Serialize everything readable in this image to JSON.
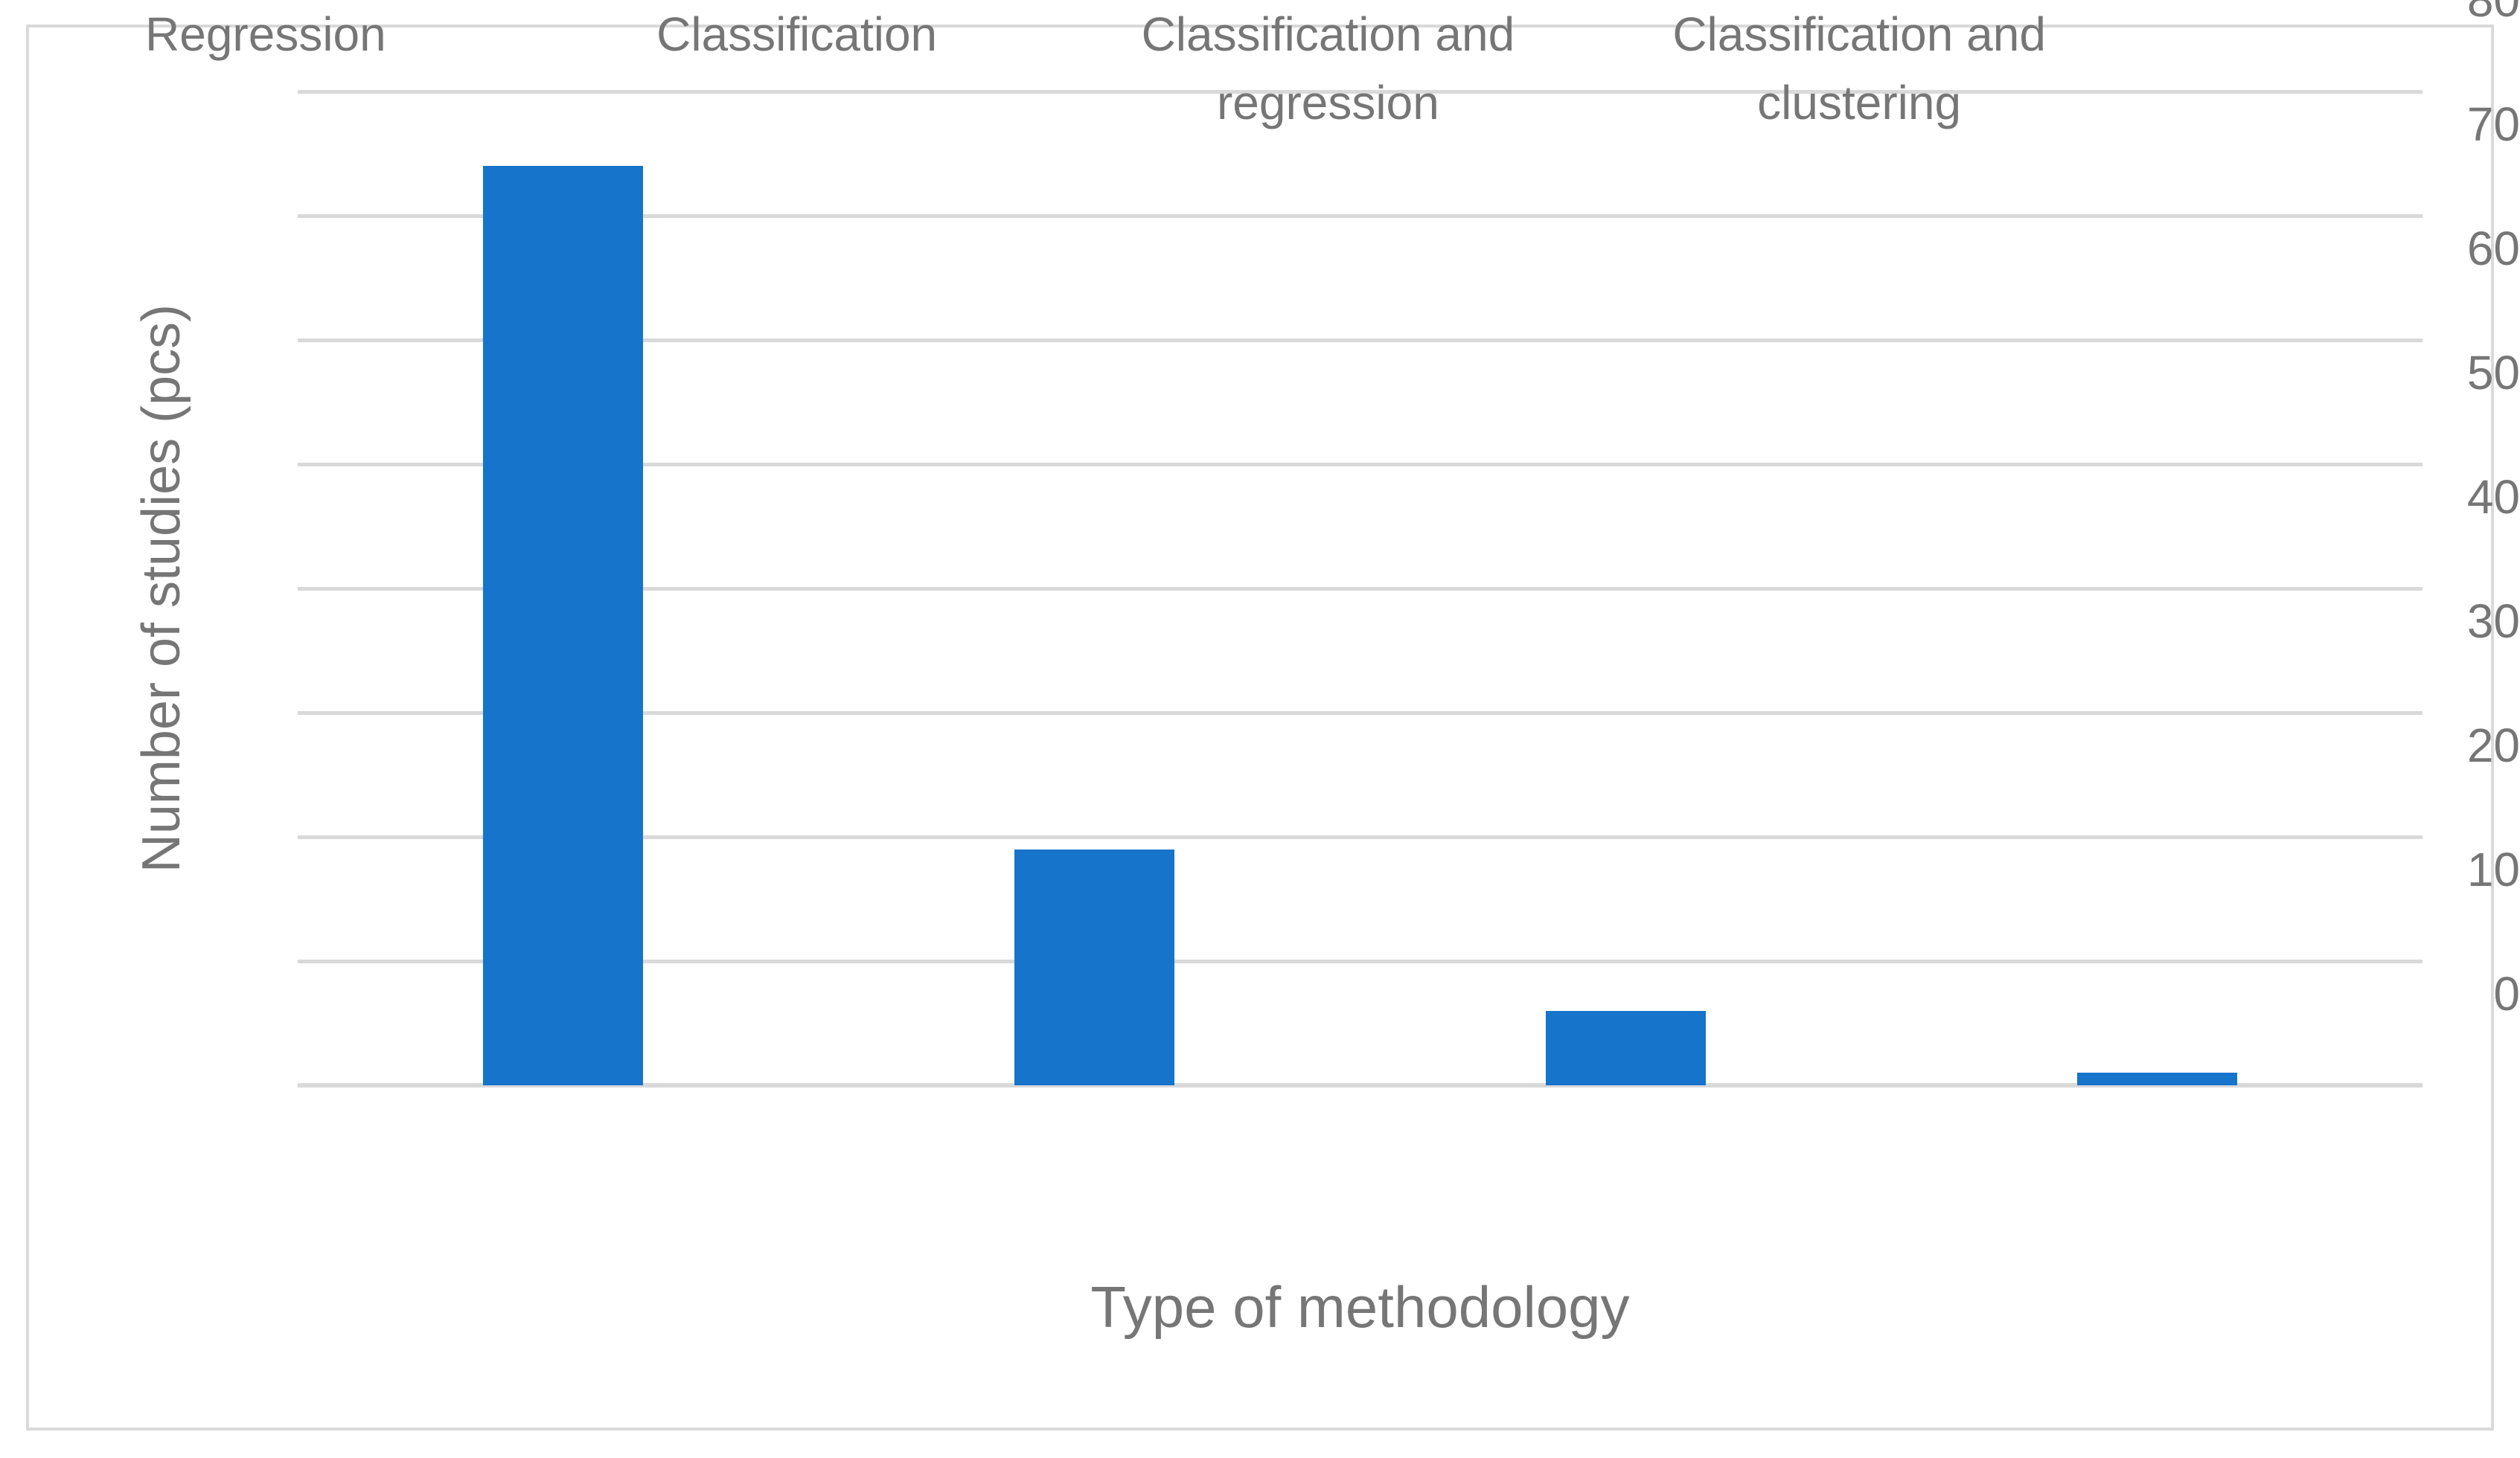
{
  "chart_data": {
    "type": "bar",
    "title": "",
    "categories": [
      "Regression",
      "Classification",
      "Classification and regression",
      "Classification and clustering"
    ],
    "values": [
      74,
      19,
      6,
      1
    ],
    "xlabel": "Type of methodology",
    "ylabel": "Number of studies (pcs)",
    "ylim": [
      0,
      80
    ],
    "ytick_step": 10,
    "ytick_labels": [
      "0",
      "10",
      "20",
      "30",
      "40",
      "50",
      "60",
      "70",
      "80"
    ],
    "grid": "horizontal",
    "legend_position": "none",
    "bar_color": "#1674CA",
    "gridline_color": "#D9D9D9",
    "axis_text_color": "#767676",
    "border_color": "#D9D9D9",
    "background_color": "#FFFFFF"
  }
}
